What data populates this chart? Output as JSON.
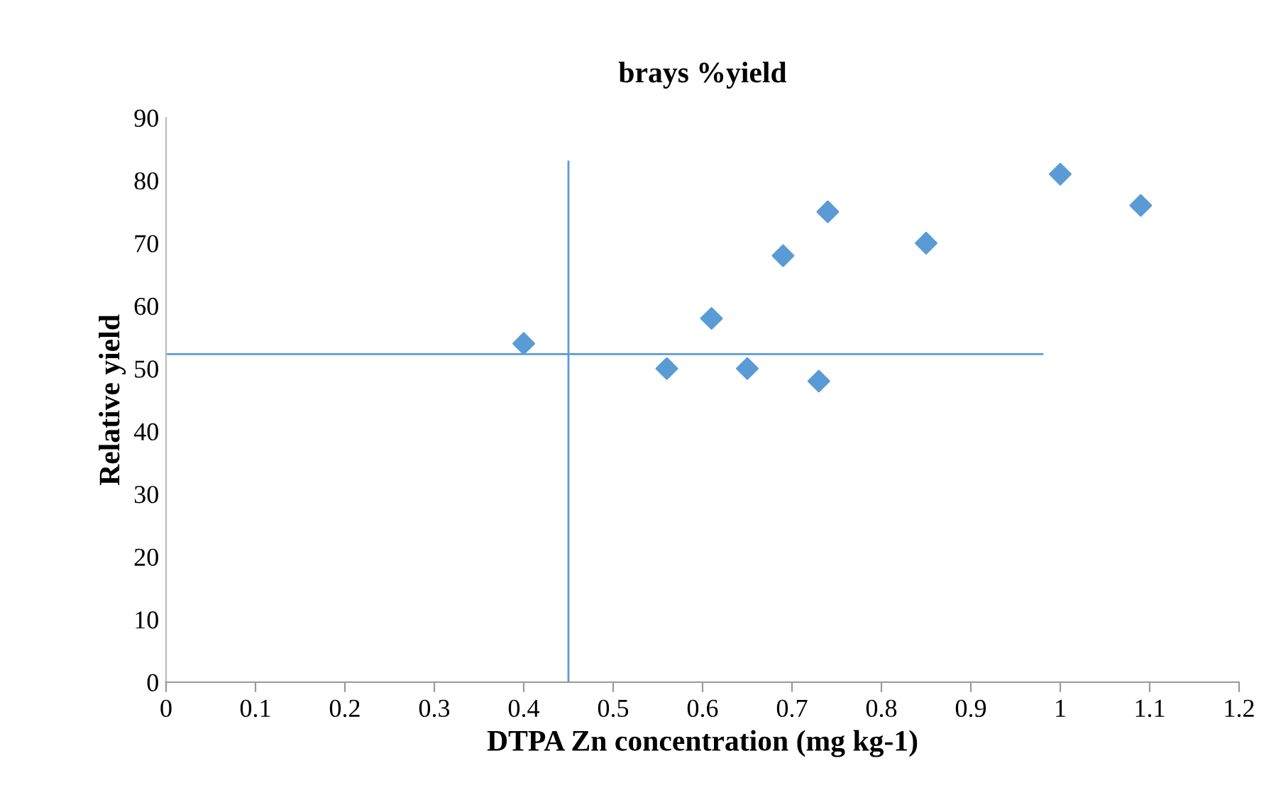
{
  "chart_data": {
    "type": "scatter",
    "title": "brays %yield",
    "xlabel": "DTPA Zn concentration (mg kg-1)",
    "ylabel": "Relative yield",
    "series": [
      {
        "type": "scatter",
        "color": "#5b9bd5",
        "marker": "diamond",
        "x": [
          0.4,
          0.56,
          0.61,
          0.65,
          0.69,
          0.74,
          0.73,
          0.85,
          1.0,
          1.09
        ],
        "values": [
          54,
          50,
          58,
          50,
          68,
          75,
          48,
          70,
          81,
          76
        ]
      },
      {
        "type": "line",
        "color": "#5b9bd5",
        "marker": "none",
        "x": [
          0.45,
          0.45
        ],
        "values": [
          0,
          83
        ]
      },
      {
        "type": "line",
        "color": "#5b9bd5",
        "marker": "none",
        "x": [
          0,
          0.98
        ],
        "values": [
          52.3,
          52.3
        ]
      }
    ],
    "xlim": [
      0,
      1.2
    ],
    "xticks": [
      0,
      0.1,
      0.2,
      0.3,
      0.4,
      0.5,
      0.6,
      0.7,
      0.8,
      0.9,
      1,
      1.1,
      1.2
    ],
    "ylim": [
      0,
      90
    ],
    "yticks": [
      0,
      10,
      20,
      30,
      40,
      50,
      60,
      70,
      80,
      90
    ],
    "grid": false,
    "legend": false
  }
}
